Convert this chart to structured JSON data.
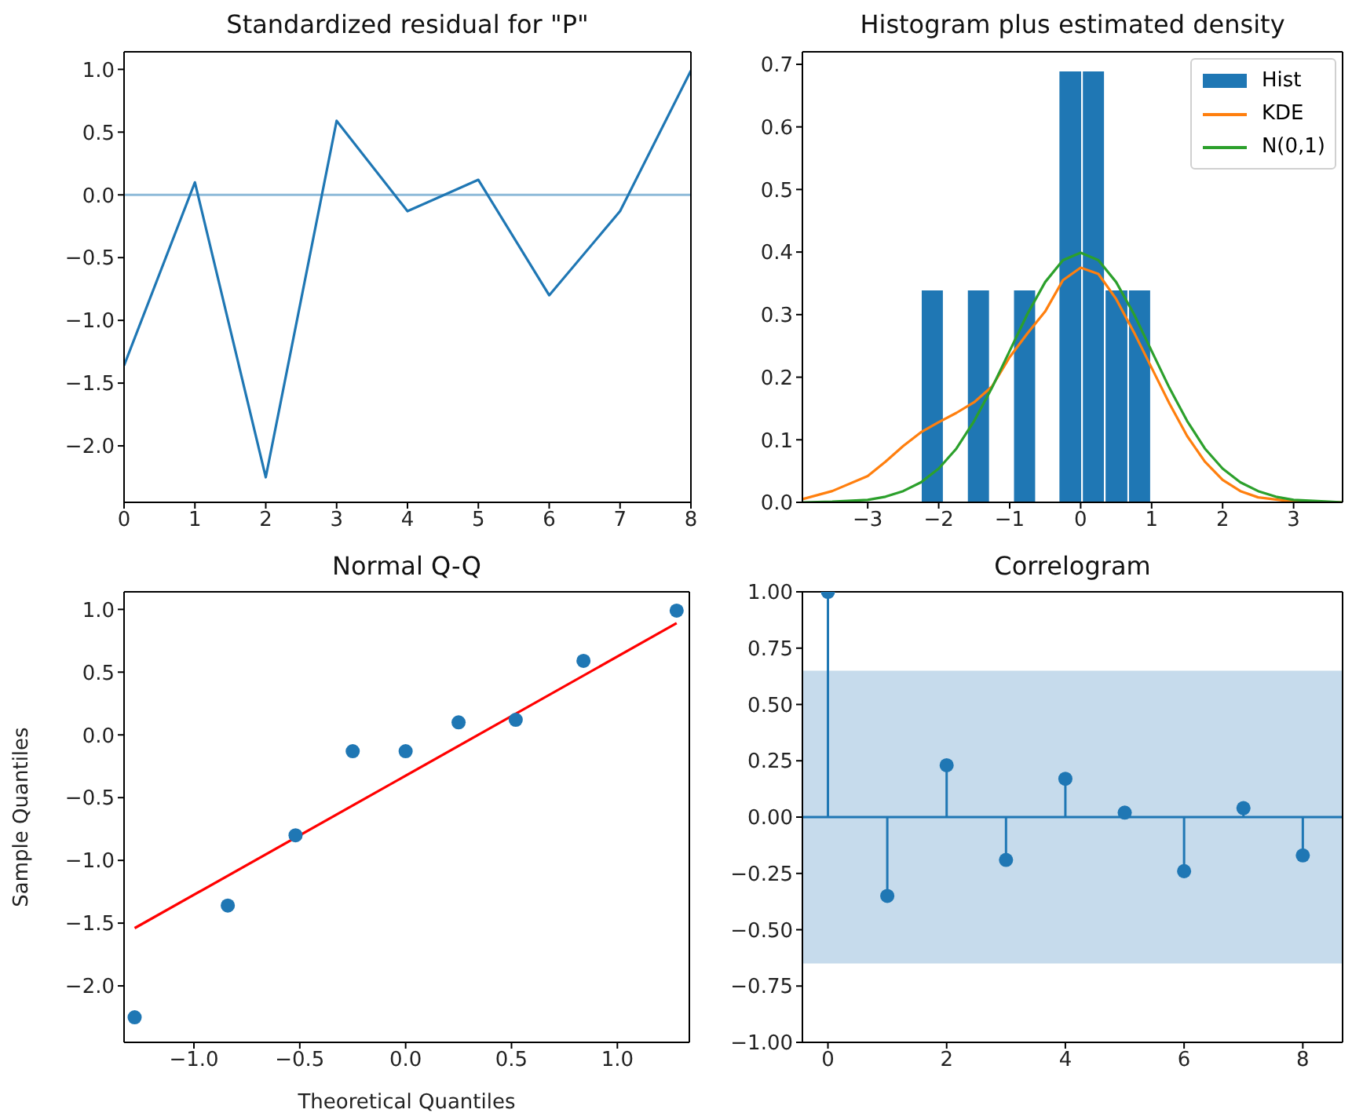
{
  "chart_data": [
    {
      "type": "line",
      "title": "Standardized residual for \"P\"",
      "x": [
        0,
        1,
        2,
        3,
        4,
        5,
        6,
        7,
        8
      ],
      "values": [
        -1.36,
        0.1,
        -2.25,
        0.59,
        -0.13,
        0.12,
        -0.8,
        -0.13,
        0.99
      ],
      "color": "#1f77b4",
      "xlim": [
        0,
        8
      ],
      "xticks": [
        0,
        1,
        2,
        3,
        4,
        5,
        6,
        7,
        8
      ],
      "ylim": [
        -2.45,
        1.14
      ],
      "yticks": [
        {
          "value": -2,
          "label": "−2.0"
        },
        -1.5,
        {
          "value": -1,
          "label": "−1.0"
        },
        -0.5,
        {
          "value": 0,
          "label": "0.0"
        },
        0.5,
        {
          "value": 1,
          "label": "1.0"
        }
      ],
      "ref_lines": [
        {
          "axis": "y",
          "value": 0,
          "color": "#8fbbd9"
        }
      ]
    },
    {
      "type": "histogram",
      "title": "Histogram plus estimated density",
      "legend": "top right",
      "series": [
        {
          "name": "Hist",
          "type": "histogram",
          "color": "#1f77b4",
          "bins": [
            -2.25,
            -1.93,
            -1.6,
            -1.28,
            -0.95,
            -0.63,
            -0.31,
            0.02,
            0.34,
            0.67,
            0.99
          ],
          "values": [
            0.34,
            0,
            0.34,
            0,
            0.34,
            0,
            0.69,
            0.69,
            0.34,
            0.34
          ]
        },
        {
          "name": "KDE",
          "type": "line",
          "color": "#ff7f0e",
          "x": [
            -3.92,
            -3.5,
            -3,
            -2.75,
            -2.5,
            -2.25,
            -2,
            -1.75,
            -1.5,
            -1.25,
            -1,
            -0.75,
            -0.5,
            -0.25,
            0,
            0.25,
            0.5,
            0.75,
            1,
            1.25,
            1.5,
            1.75,
            2,
            2.25,
            2.5,
            3,
            3.69
          ],
          "values": [
            0.005,
            0.018,
            0.042,
            0.065,
            0.09,
            0.112,
            0.128,
            0.143,
            0.16,
            0.185,
            0.232,
            0.27,
            0.305,
            0.355,
            0.375,
            0.365,
            0.325,
            0.272,
            0.215,
            0.158,
            0.106,
            0.065,
            0.036,
            0.018,
            0.008,
            0.001,
            0
          ]
        },
        {
          "name": "N(0,1)",
          "type": "line",
          "color": "#2ca02c",
          "x": [
            -3.92,
            -3.5,
            -3,
            -2.75,
            -2.5,
            -2.25,
            -2,
            -1.75,
            -1.5,
            -1.25,
            -1,
            -0.75,
            -0.5,
            -0.25,
            0,
            0.25,
            0.5,
            0.75,
            1,
            1.25,
            1.5,
            1.75,
            2,
            2.25,
            2.5,
            2.75,
            3,
            3.5,
            3.69
          ],
          "values": [
            0,
            0.001,
            0.004,
            0.009,
            0.018,
            0.032,
            0.054,
            0.086,
            0.13,
            0.183,
            0.242,
            0.301,
            0.352,
            0.387,
            0.399,
            0.387,
            0.352,
            0.301,
            0.242,
            0.183,
            0.13,
            0.086,
            0.054,
            0.032,
            0.018,
            0.009,
            0.004,
            0.001,
            0
          ]
        }
      ],
      "xlim": [
        -3.92,
        3.69
      ],
      "xticks": [
        -3,
        -2,
        -1,
        0,
        1,
        2,
        3
      ],
      "ylim": [
        0,
        0.72
      ],
      "yticks": [
        {
          "value": 0,
          "label": "0.0"
        },
        0.1,
        0.2,
        0.3,
        0.4,
        0.5,
        0.6,
        0.7
      ]
    },
    {
      "type": "scatter",
      "title": "Normal Q-Q",
      "xlabel": "Theoretical Quantiles",
      "ylabel": "Sample Quantiles",
      "series": [
        {
          "type": "scatter",
          "marker": "circle",
          "color": "#1f77b4",
          "x": [
            -1.28,
            -0.84,
            -0.52,
            -0.25,
            0,
            0.25,
            0.52,
            0.84,
            1.28
          ],
          "values": [
            -2.25,
            -1.36,
            -0.8,
            -0.13,
            -0.13,
            0.1,
            0.12,
            0.59,
            0.99
          ]
        },
        {
          "type": "line",
          "color": "#ff0000",
          "x": [
            -1.28,
            1.28
          ],
          "values": [
            -1.54,
            0.89
          ]
        }
      ],
      "xlim": [
        -1.33,
        1.34
      ],
      "xticks": [
        {
          "value": -1,
          "label": "−1.0"
        },
        -0.5,
        {
          "value": 0,
          "label": "0.0"
        },
        0.5,
        {
          "value": 1,
          "label": "1.0"
        }
      ],
      "ylim": [
        -2.45,
        1.14
      ],
      "yticks": [
        {
          "value": -2,
          "label": "−2.0"
        },
        -1.5,
        {
          "value": -1,
          "label": "−1.0"
        },
        -0.5,
        {
          "value": 0,
          "label": "0.0"
        },
        0.5,
        {
          "value": 1,
          "label": "1.0"
        }
      ]
    },
    {
      "type": "lollipop",
      "title": "Correlogram",
      "bands": [
        {
          "axis": "y",
          "from": -0.65,
          "to": 0.65,
          "color": "#c6dbec"
        }
      ],
      "series": [
        {
          "type": "lollipop",
          "marker": "circle",
          "color": "#1f77b4",
          "x": [
            0,
            1,
            2,
            3,
            4,
            5,
            6,
            7,
            8
          ],
          "values": [
            1,
            -0.35,
            0.23,
            -0.19,
            0.17,
            0.02,
            -0.24,
            0.04,
            -0.17
          ]
        }
      ],
      "ref_lines": [
        {
          "axis": "y",
          "value": 0,
          "color": "#1f77b4"
        }
      ],
      "xlim": [
        -0.43,
        8.67
      ],
      "xticks": [
        0,
        2,
        4,
        6,
        8
      ],
      "ylim": [
        -1,
        1
      ],
      "yticks": [
        {
          "value": -1,
          "label": "−1.00"
        },
        -0.75,
        {
          "value": -0.5,
          "label": "−0.50"
        },
        -0.25,
        {
          "value": 0,
          "label": "0.00"
        },
        0.25,
        {
          "value": 0.5,
          "label": "0.50"
        },
        0.75,
        {
          "value": 1,
          "label": "1.00"
        }
      ]
    }
  ]
}
